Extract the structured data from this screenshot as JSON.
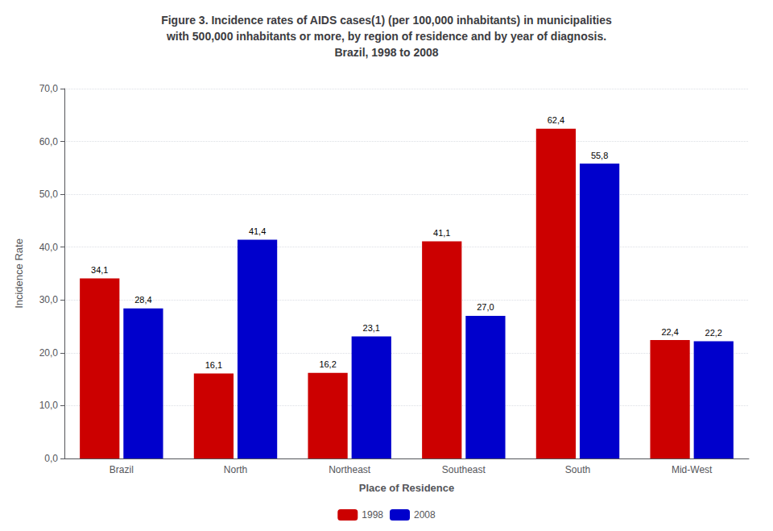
{
  "chart_data": {
    "type": "bar",
    "title": "Figure 3. Incidence rates of AIDS cases(1) (per 100,000 inhabitants) in municipalities\nwith 500,000 inhabitants or more, by region of residence and by year of diagnosis.\nBrazil, 1998 to 2008",
    "xlabel": "Place of Residence",
    "ylabel": "Incidence Rate",
    "categories": [
      "Brazil",
      "North",
      "Northeast",
      "Southeast",
      "South",
      "Mid-West"
    ],
    "series": [
      {
        "name": "1998",
        "color": "#cc0000",
        "values": [
          34.1,
          16.1,
          16.2,
          41.1,
          62.4,
          22.4
        ],
        "value_labels": [
          "34,1",
          "16,1",
          "16,2",
          "41,1",
          "62,4",
          "22,4"
        ]
      },
      {
        "name": "2008",
        "color": "#0000cc",
        "values": [
          28.4,
          41.4,
          23.1,
          27.0,
          55.8,
          22.2
        ],
        "value_labels": [
          "28,4",
          "41,4",
          "23,1",
          "27,0",
          "55,8",
          "22,2"
        ]
      }
    ],
    "ylim": [
      0,
      70
    ],
    "yticks": [
      {
        "value": 0,
        "label": "0,0"
      },
      {
        "value": 10,
        "label": "10,0"
      },
      {
        "value": 20,
        "label": "20,0"
      },
      {
        "value": 30,
        "label": "30,0"
      },
      {
        "value": 40,
        "label": "40,0"
      },
      {
        "value": 50,
        "label": "50,0"
      },
      {
        "value": 60,
        "label": "60,0"
      },
      {
        "value": 70,
        "label": "70,0"
      }
    ],
    "grid": true,
    "legend": "bottom",
    "data_labels": true
  }
}
